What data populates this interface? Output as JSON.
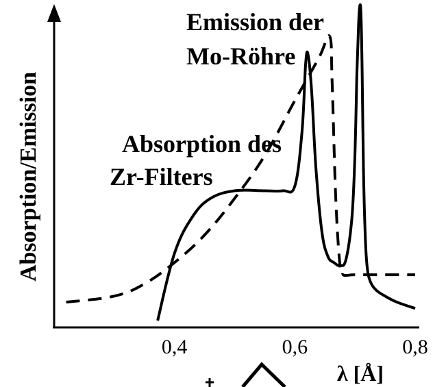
{
  "chart_data": {
    "type": "line",
    "title": "",
    "xlabel": "λ [Å]",
    "ylabel": "Absorption/Emission",
    "xlim": [
      0.2,
      0.8
    ],
    "ylim": [
      0,
      1
    ],
    "x_ticks": [
      "0,4",
      "0,6",
      "0,8"
    ],
    "x_tick_values": [
      0.4,
      0.6,
      0.8
    ],
    "y_ticks_shown": false,
    "annotations": [
      {
        "text_lines": [
          "Emission der",
          "Mo-Röhre"
        ],
        "refers_to": "emission"
      },
      {
        "text_lines": [
          "Absorption des",
          "Zr-Filters"
        ],
        "refers_to": "absorption"
      }
    ],
    "series": [
      {
        "key": "emission",
        "style": "solid",
        "color": "#000000",
        "x": [
          0.372,
          0.4,
          0.43,
          0.46,
          0.5,
          0.55,
          0.58,
          0.6,
          0.612,
          0.618,
          0.622,
          0.628,
          0.635,
          0.645,
          0.655,
          0.665,
          0.675,
          0.685,
          0.695,
          0.7,
          0.703,
          0.706,
          0.708,
          0.71,
          0.712,
          0.714,
          0.717,
          0.72,
          0.725,
          0.735,
          0.75,
          0.77,
          0.8
        ],
        "y": [
          0.0,
          0.22,
          0.34,
          0.4,
          0.425,
          0.425,
          0.425,
          0.44,
          0.62,
          0.84,
          0.87,
          0.75,
          0.5,
          0.29,
          0.21,
          0.19,
          0.18,
          0.2,
          0.34,
          0.55,
          0.8,
          0.97,
          1.03,
          1.0,
          0.8,
          0.5,
          0.28,
          0.18,
          0.13,
          0.1,
          0.08,
          0.06,
          0.04
        ]
      },
      {
        "key": "absorption",
        "style": "dashed",
        "color": "#000000",
        "x": [
          0.22,
          0.3,
          0.35,
          0.4,
          0.45,
          0.5,
          0.55,
          0.6,
          0.64,
          0.658,
          0.662,
          0.668,
          0.675,
          0.68,
          0.7,
          0.75,
          0.8
        ],
        "y": [
          0.06,
          0.08,
          0.12,
          0.19,
          0.28,
          0.4,
          0.54,
          0.72,
          0.86,
          0.93,
          0.78,
          0.4,
          0.18,
          0.15,
          0.15,
          0.15,
          0.15
        ]
      }
    ]
  }
}
